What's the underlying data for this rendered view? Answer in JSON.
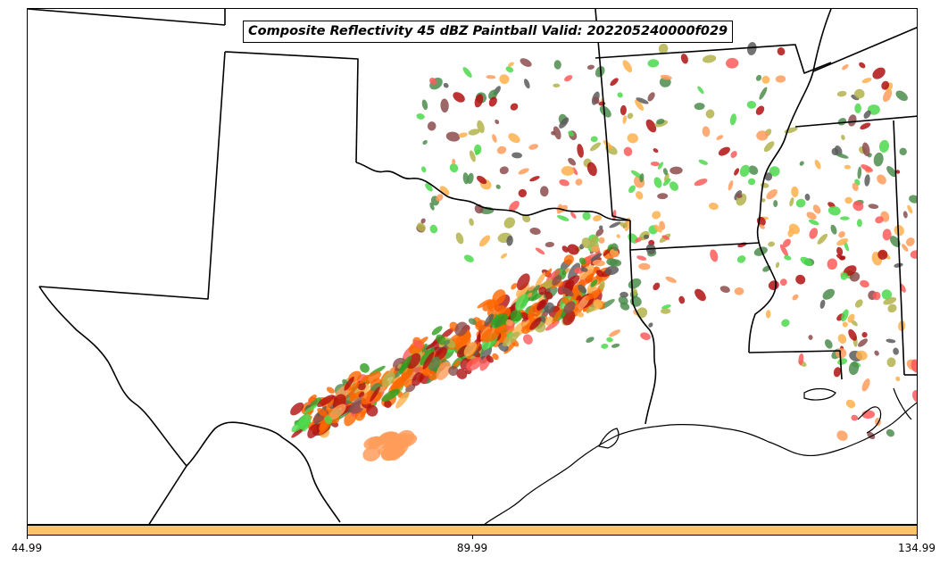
{
  "title": "Composite Reflectivity 45 dBZ Paintball Valid: 202205240000f029",
  "colorbar": {
    "color": "#ffc266",
    "ticks": [
      "44.99",
      "89.99",
      "134.99"
    ]
  },
  "member_colors": [
    "#4cd94c",
    "#ff5a5a",
    "#b3b34c",
    "#8c4c4c",
    "#ff9c5a",
    "#4c8c4c",
    "#5a5a5a",
    "#b01010",
    "#ffb04c",
    "#ff6600",
    "#2e9e1e"
  ],
  "layers": [
    "state-borders",
    "coastline",
    "reflectivity-paintball"
  ]
}
